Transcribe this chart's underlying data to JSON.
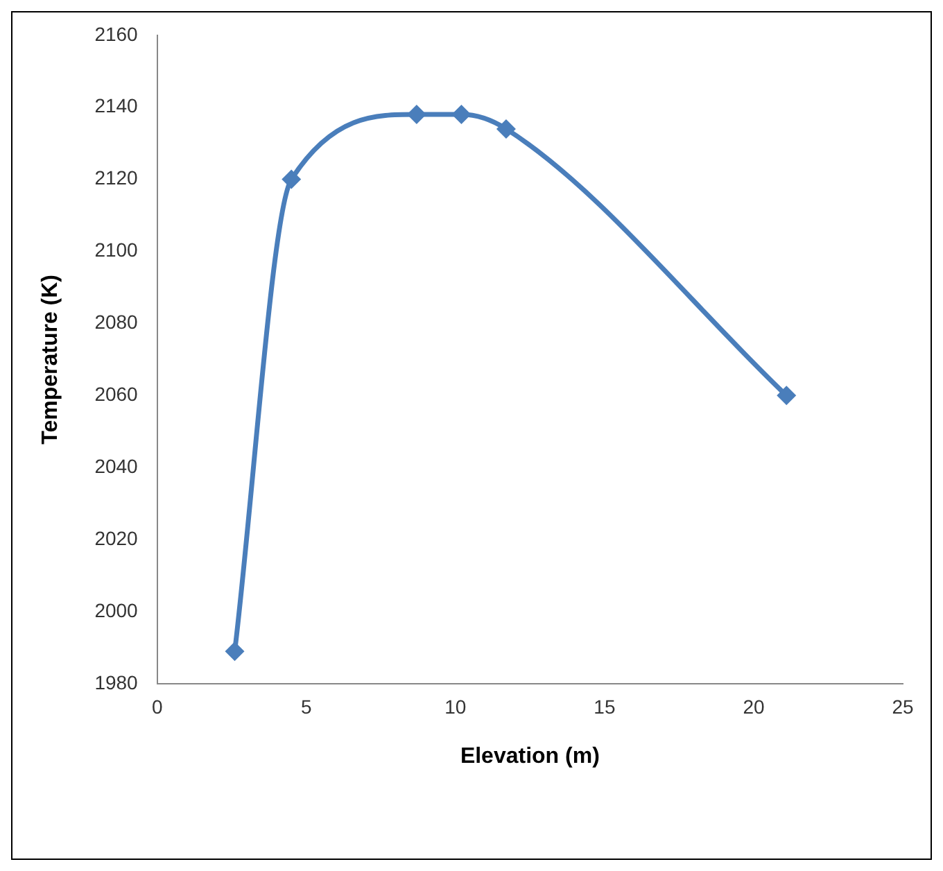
{
  "chart_data": {
    "type": "line",
    "xlabel": "Elevation (m)",
    "ylabel": "Temperature (K)",
    "x": [
      2.6,
      4.5,
      8.7,
      10.2,
      11.7,
      21.1
    ],
    "series": [
      {
        "color": "#4a7ebb",
        "values": [
          1989,
          2120,
          2138,
          2138,
          2134,
          2060
        ]
      }
    ],
    "xlim": [
      0,
      25
    ],
    "xticks": [
      0,
      5,
      10,
      15,
      20,
      25
    ],
    "ylim": [
      1980,
      2160
    ],
    "yticks": [
      1980,
      2000,
      2020,
      2040,
      2060,
      2080,
      2100,
      2120,
      2140,
      2160
    ],
    "grid": false,
    "legend": false,
    "marker": "diamond",
    "line_style": "solid"
  }
}
